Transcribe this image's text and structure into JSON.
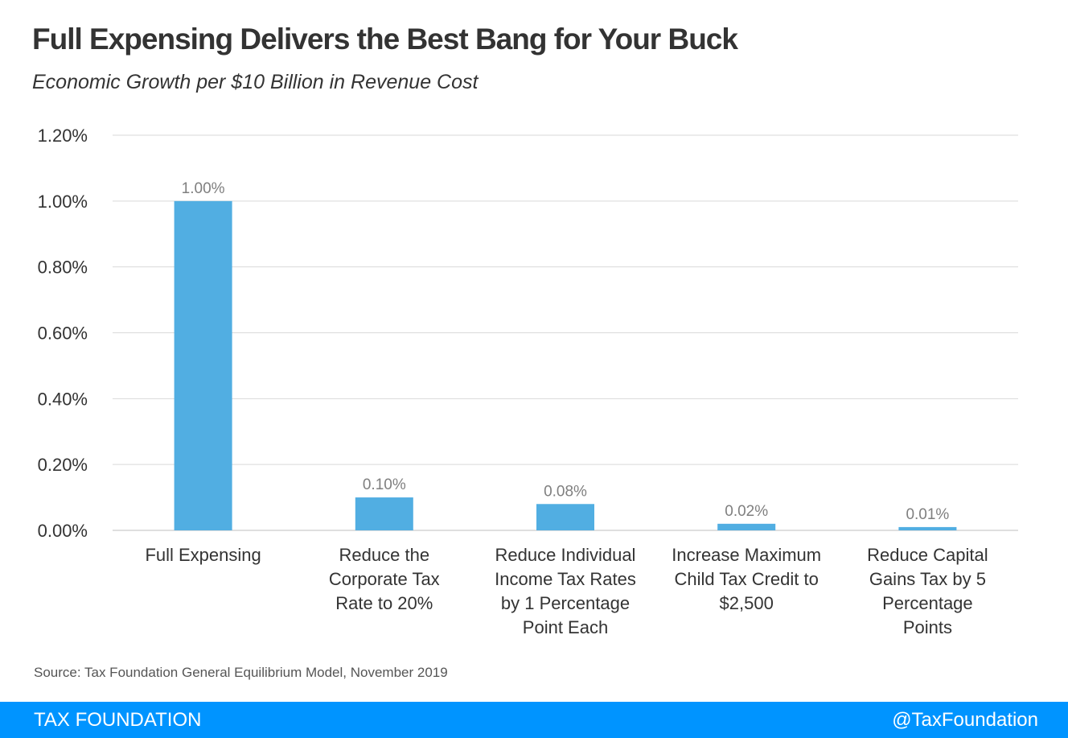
{
  "title": "Full Expensing Delivers the Best Bang for Your Buck",
  "subtitle": "Economic Growth per $10 Billion in Revenue Cost",
  "source": "Source: Tax Foundation General Equilibrium Model, November 2019",
  "footer": {
    "brand": "TAX FOUNDATION",
    "handle": "@TaxFoundation"
  },
  "colors": {
    "bar": "#51aee2",
    "footer": "#0094ff",
    "grid": "#d9d9d9",
    "data_label": "#7f7f7f"
  },
  "chart_data": {
    "type": "bar",
    "categories": [
      [
        "Full Expensing"
      ],
      [
        "Reduce the",
        "Corporate Tax",
        "Rate to 20%"
      ],
      [
        "Reduce Individual",
        "Income Tax Rates",
        "by 1 Percentage",
        "Point Each"
      ],
      [
        "Increase Maximum",
        "Child Tax Credit to",
        "$2,500"
      ],
      [
        "Reduce Capital",
        "Gains Tax by 5",
        "Percentage",
        "Points"
      ]
    ],
    "values": [
      1.0,
      0.1,
      0.08,
      0.02,
      0.01
    ],
    "data_labels": [
      "1.00%",
      "0.10%",
      "0.08%",
      "0.02%",
      "0.01%"
    ],
    "y_ticks": [
      "0.00%",
      "0.20%",
      "0.40%",
      "0.60%",
      "0.80%",
      "1.00%",
      "1.20%"
    ],
    "ylim": [
      0,
      1.2
    ],
    "grid": true,
    "title": "Full Expensing Delivers the Best Bang for Your Buck",
    "subtitle": "Economic Growth per $10 Billion in Revenue Cost"
  }
}
